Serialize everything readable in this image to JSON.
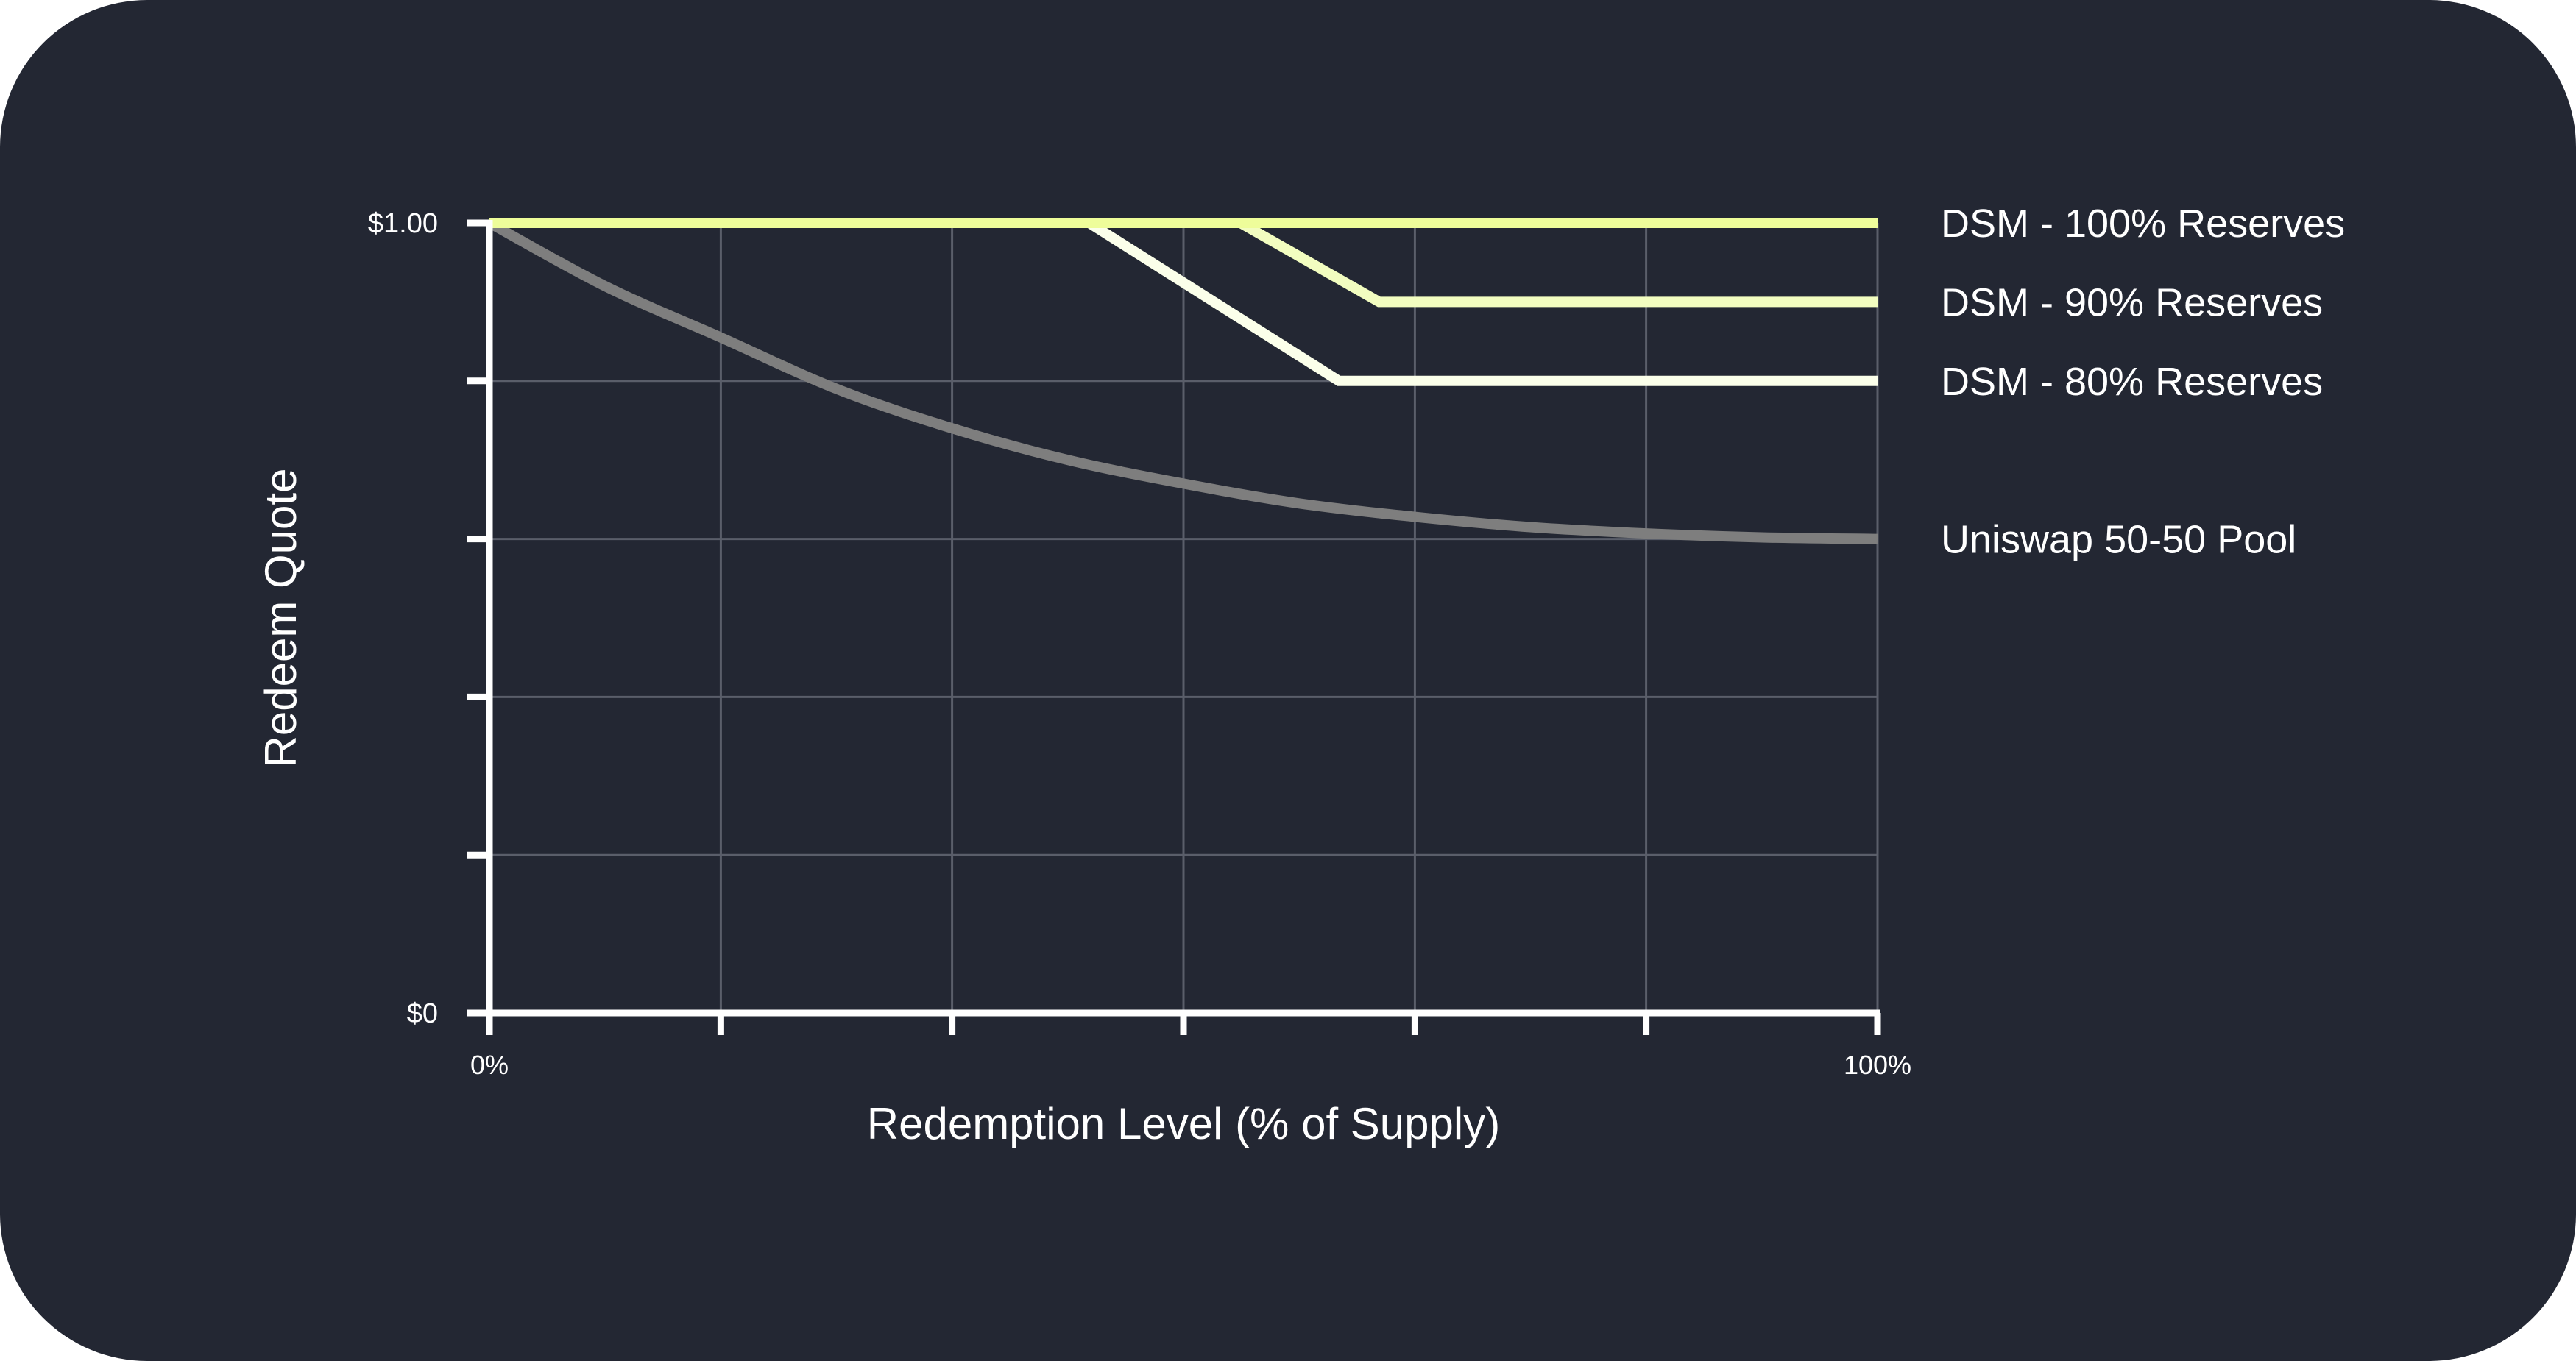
{
  "colors": {
    "background": "#232733",
    "grid": "#5a5e6a",
    "axis": "#ffffff"
  },
  "chart_data": {
    "type": "line",
    "xlabel": "Redemption Level (% of Supply)",
    "ylabel": "Redeem Quote",
    "xlim": [
      0,
      100
    ],
    "ylim": [
      0,
      1
    ],
    "x_tick_labels": [
      {
        "value": 0,
        "label": "0%"
      },
      {
        "value": 100,
        "label": "100%"
      }
    ],
    "y_tick_labels": [
      {
        "value": 1,
        "label": "$1.00"
      },
      {
        "value": 0,
        "label": "$0"
      }
    ],
    "x_ticks": [
      0,
      16.67,
      33.33,
      50,
      66.67,
      83.33,
      100
    ],
    "y_ticks": [
      0,
      0.2,
      0.4,
      0.6,
      0.8,
      1.0
    ],
    "grid": true,
    "legend_placement": "right (inline labels at line ends)",
    "series": [
      {
        "name": "Uniswap 50-50 Pool",
        "color": "#7e7e7e",
        "x": [
          0,
          8.33,
          16.67,
          25,
          33.33,
          41.67,
          50,
          58.33,
          66.67,
          75,
          83.33,
          91.67,
          100
        ],
        "y": [
          1.0,
          0.92,
          0.855,
          0.79,
          0.74,
          0.7,
          0.67,
          0.645,
          0.628,
          0.615,
          0.607,
          0.602,
          0.6
        ]
      },
      {
        "name": "DSM - 80% Reserves",
        "color": "#fbffea",
        "x": [
          0,
          43.2,
          61.2,
          100
        ],
        "y": [
          1.0,
          1.0,
          0.8,
          0.8
        ]
      },
      {
        "name": "DSM - 90% Reserves",
        "color": "#f2fdc0",
        "x": [
          0,
          54.1,
          64.1,
          100
        ],
        "y": [
          1.0,
          1.0,
          0.9,
          0.9
        ]
      },
      {
        "name": "DSM - 100% Reserves",
        "color": "#eefd9a",
        "x": [
          0,
          100
        ],
        "y": [
          1.0,
          1.0
        ]
      }
    ]
  }
}
